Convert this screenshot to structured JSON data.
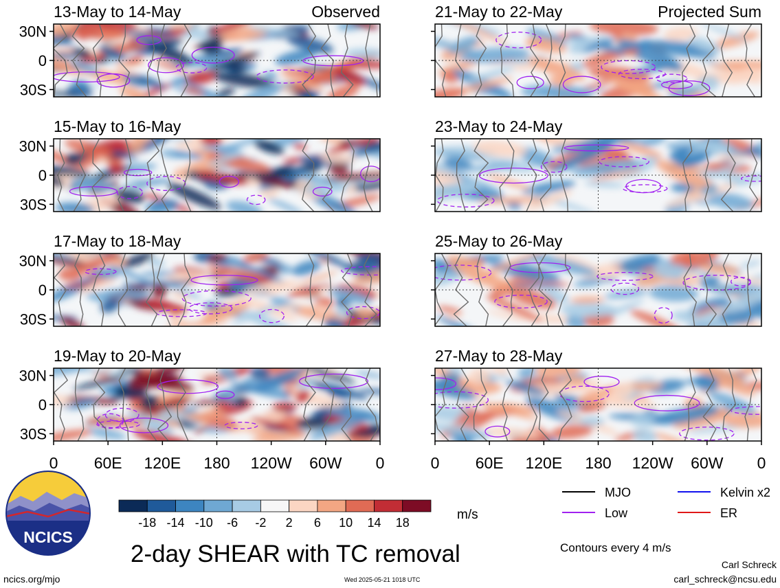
{
  "panels": [
    {
      "date_range": "13-May to 14-May",
      "tag": "Observed"
    },
    {
      "date_range": "15-May to 16-May",
      "tag": ""
    },
    {
      "date_range": "17-May to 18-May",
      "tag": ""
    },
    {
      "date_range": "19-May to 20-May",
      "tag": ""
    },
    {
      "date_range": "21-May to 22-May",
      "tag": "Projected Sum"
    },
    {
      "date_range": "23-May to 24-May",
      "tag": ""
    },
    {
      "date_range": "25-May to 26-May",
      "tag": ""
    },
    {
      "date_range": "27-May to 28-May",
      "tag": ""
    }
  ],
  "lat_ticks": [
    "30N",
    "0",
    "30S"
  ],
  "lon_ticks": [
    "0",
    "60E",
    "120E",
    "180",
    "120W",
    "60W",
    "0"
  ],
  "colorbar": {
    "tick_labels": [
      "-18",
      "-14",
      "-10",
      "-6",
      "-2",
      "2",
      "6",
      "10",
      "14",
      "18"
    ],
    "colors": [
      "#0b2a57",
      "#1f5a9a",
      "#3d85c0",
      "#6fa8d3",
      "#a7cbe4",
      "#f7f7f7",
      "#fbd6c3",
      "#f3a683",
      "#e06b55",
      "#c22d35",
      "#7d0c25"
    ],
    "units": "m/s"
  },
  "legend": [
    {
      "label": "MJO",
      "color": "#000000"
    },
    {
      "label": "Kelvin x2",
      "color": "#1010ee"
    },
    {
      "label": "Low",
      "color": "#a020f0"
    },
    {
      "label": "ER",
      "color": "#e01818"
    }
  ],
  "contour_note": "Contours every 4 m/s",
  "title": "2-day SHEAR with TC removal",
  "logo_text": "NCICS",
  "source_url": "ncics.org/mjo",
  "timestamp": "Wed 2025-05-21 1018 UTC",
  "author": "Carl Schreck",
  "author_email": "carl_schreck@ncsu.edu"
}
